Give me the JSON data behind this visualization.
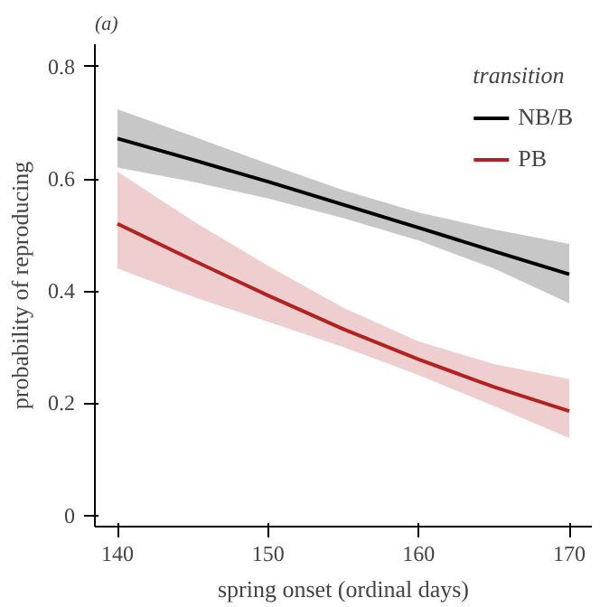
{
  "chart_data": {
    "type": "line",
    "title": "(a)",
    "xlabel": "spring onset (ordinal days)",
    "ylabel": "probability of reproducing",
    "legend_title": "transition",
    "legend": "top right",
    "grid": false,
    "x": [
      140,
      145,
      150,
      155,
      160,
      165,
      170
    ],
    "series": [
      {
        "name": "NB/B",
        "color": "#000000",
        "values": [
          0.672,
          0.634,
          0.595,
          0.554,
          0.513,
          0.471,
          0.43
        ],
        "lower": [
          0.62,
          0.595,
          0.565,
          0.53,
          0.49,
          0.44,
          0.378
        ],
        "upper": [
          0.724,
          0.676,
          0.627,
          0.58,
          0.54,
          0.51,
          0.484
        ]
      },
      {
        "name": "PB",
        "color": "#b22222",
        "values": [
          0.52,
          0.455,
          0.392,
          0.332,
          0.278,
          0.229,
          0.186
        ],
        "lower": [
          0.44,
          0.39,
          0.345,
          0.3,
          0.25,
          0.195,
          0.138
        ],
        "upper": [
          0.613,
          0.525,
          0.445,
          0.37,
          0.31,
          0.27,
          0.243
        ]
      }
    ],
    "xlim": [
      138.5,
      171.5
    ],
    "ylim": [
      -0.02,
      0.84
    ],
    "xticks": [
      140,
      150,
      160,
      170
    ],
    "yticks": [
      0,
      0.2,
      0.4,
      0.6,
      0.8
    ]
  }
}
